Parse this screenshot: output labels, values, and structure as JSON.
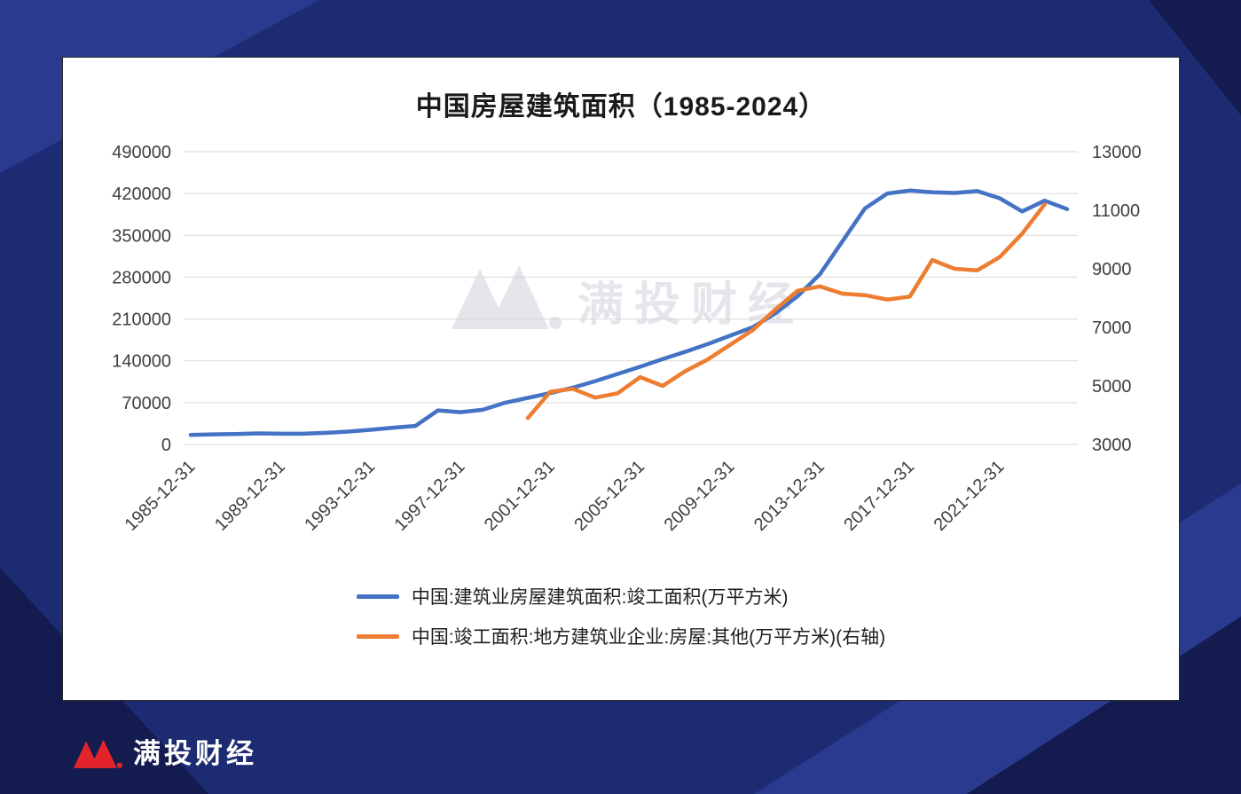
{
  "page": {
    "brand": {
      "name": "满投财经",
      "color": "#e3242b"
    },
    "watermark": {
      "text": "满投财经"
    }
  },
  "chart_data": {
    "type": "line",
    "title": "中国房屋建筑面积（1985-2024）",
    "x_range": [
      1985,
      2024
    ],
    "x_tick_labels": [
      "1985-12-31",
      "1989-12-31",
      "1993-12-31",
      "1997-12-31",
      "2001-12-31",
      "2005-12-31",
      "2009-12-31",
      "2013-12-31",
      "2017-12-31",
      "2021-12-31"
    ],
    "left_axis": {
      "min": 0,
      "max": 490000,
      "ticks": [
        0,
        70000,
        140000,
        210000,
        280000,
        350000,
        420000,
        490000
      ]
    },
    "right_axis": {
      "min": 3000,
      "max": 13000,
      "ticks": [
        3000,
        5000,
        7000,
        9000,
        11000,
        13000
      ]
    },
    "grid": true,
    "legend_position": "bottom",
    "series": [
      {
        "name": "中国:建筑业房屋建筑面积:竣工面积(万平方米)",
        "color": "#4472c4",
        "axis": "left",
        "start_year": 1985,
        "values": [
          16000,
          17000,
          17500,
          18500,
          18000,
          18000,
          19500,
          21500,
          24500,
          28000,
          31000,
          57000,
          54000,
          58000,
          70000,
          78000,
          86000,
          95000,
          106000,
          118000,
          130000,
          143000,
          155000,
          168000,
          182000,
          196000,
          219000,
          248000,
          285000,
          340000,
          395000,
          420000,
          425000,
          422000,
          421000,
          424000,
          412000,
          390000,
          408000,
          394000
        ]
      },
      {
        "name": "中国:竣工面积:地方建筑业企业:房屋:其他(万平方米)(右轴)",
        "color": "#ed7d31",
        "axis": "right",
        "start_year": 2000,
        "values": [
          3900,
          4800,
          4900,
          4600,
          4750,
          5300,
          5000,
          5500,
          5900,
          6400,
          6900,
          7600,
          8250,
          8400,
          8150,
          8100,
          7950,
          8050,
          9300,
          9000,
          8950,
          9400,
          10200,
          11200
        ]
      }
    ]
  }
}
